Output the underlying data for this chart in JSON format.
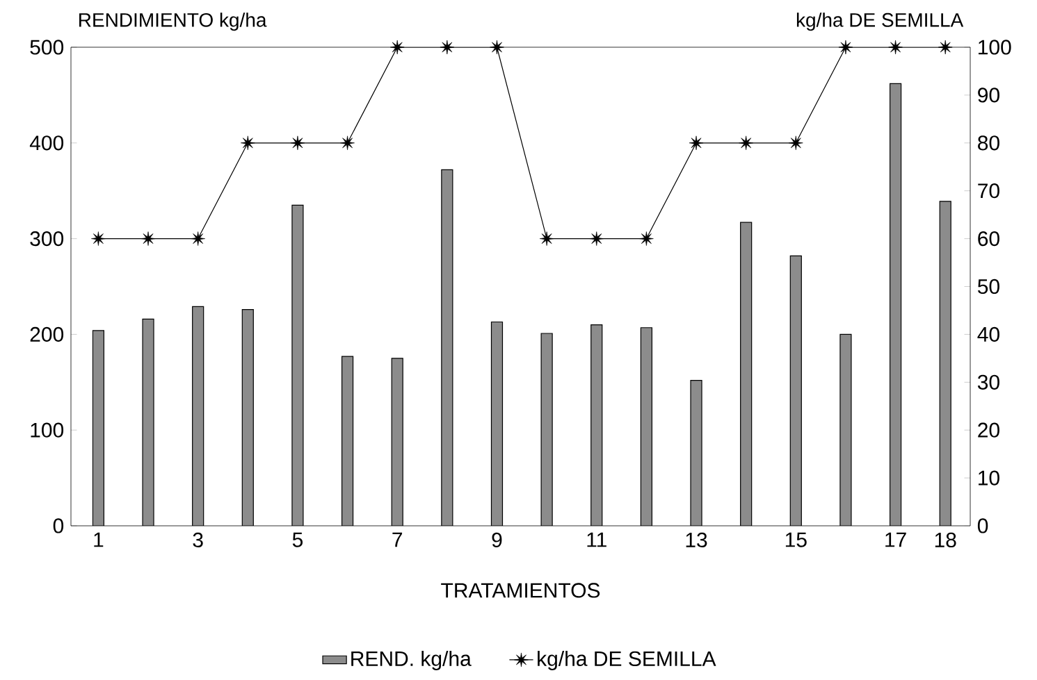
{
  "chart_data": {
    "type": "bar",
    "xlabel": "TRATAMIENTOS",
    "ylabel": "RENDIMIENTO kg/ha",
    "y2label": "kg/ha DE SEMILLA",
    "categories": [
      "1",
      null,
      "3",
      null,
      "5",
      null,
      "7",
      null,
      "9",
      null,
      "11",
      null,
      "13",
      null,
      "15",
      null,
      "17",
      "18"
    ],
    "series": [
      {
        "name": "REND. kg/ha",
        "color": "#8c8c8c",
        "values": [
          204,
          216,
          229,
          226,
          335,
          177,
          175,
          372,
          213,
          201,
          210,
          207,
          152,
          317,
          282,
          200,
          462,
          339
        ]
      },
      {
        "name": "kg/ha DE SEMILLA",
        "type": "line",
        "axis": "y2",
        "marker": "star",
        "color": "#000000",
        "values": [
          60,
          60,
          60,
          80,
          80,
          80,
          100,
          100,
          100,
          60,
          60,
          60,
          80,
          80,
          80,
          100,
          100,
          100
        ]
      }
    ],
    "ylim": [
      0,
      500
    ],
    "yticks": [
      0,
      100,
      200,
      300,
      400,
      500
    ],
    "y2lim": [
      0,
      100
    ],
    "y2ticks": [
      0,
      10,
      20,
      30,
      40,
      50,
      60,
      70,
      80,
      90,
      100
    ],
    "legend": "bottom"
  }
}
